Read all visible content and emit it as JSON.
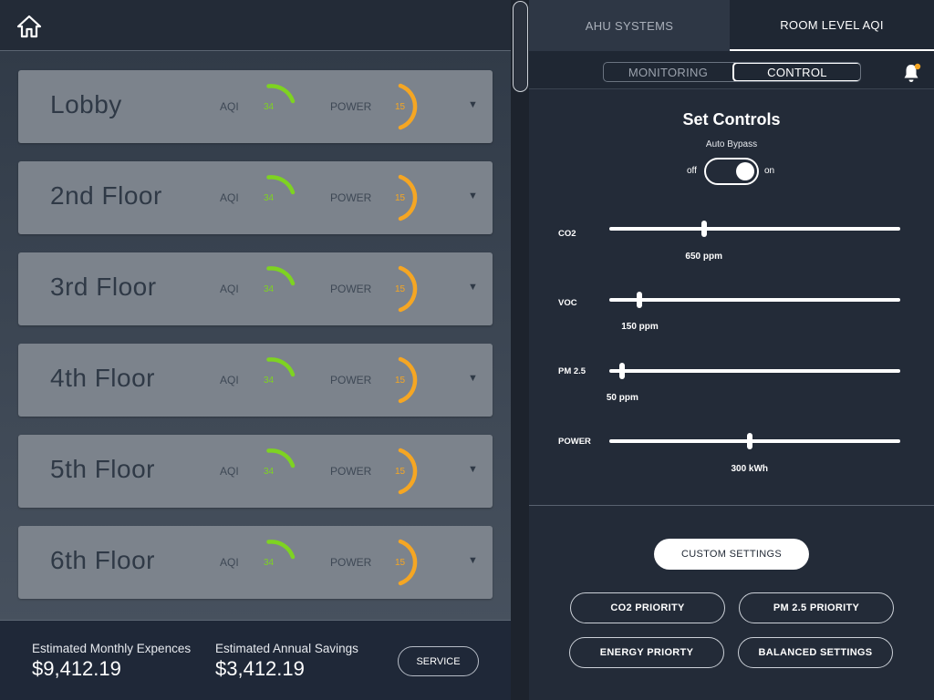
{
  "left_panel": {
    "floors": [
      {
        "name": "Lobby",
        "aqi_label": "AQI",
        "aqi_value": "34",
        "power_label": "POWER",
        "power_value": "15"
      },
      {
        "name": "2nd Floor",
        "aqi_label": "AQI",
        "aqi_value": "34",
        "power_label": "POWER",
        "power_value": "15"
      },
      {
        "name": "3rd Floor",
        "aqi_label": "AQI",
        "aqi_value": "34",
        "power_label": "POWER",
        "power_value": "15"
      },
      {
        "name": "4th Floor",
        "aqi_label": "AQI",
        "aqi_value": "34",
        "power_label": "POWER",
        "power_value": "15"
      },
      {
        "name": "5th Floor",
        "aqi_label": "AQI",
        "aqi_value": "34",
        "power_label": "POWER",
        "power_value": "15"
      },
      {
        "name": "6th Floor",
        "aqi_label": "AQI",
        "aqi_value": "34",
        "power_label": "POWER",
        "power_value": "15"
      }
    ],
    "expand_glyph": "▼",
    "footer": {
      "monthly_label": "Estimated Monthly Expences",
      "monthly_value": "$9,412.19",
      "annual_label": "Estimated Annual Savings",
      "annual_value": "$3,412.19",
      "service_label": "SERVICE"
    }
  },
  "right_panel": {
    "tabs": [
      {
        "label": "AHU SYSTEMS",
        "active": false
      },
      {
        "label": "ROOM LEVEL AQI",
        "active": true
      }
    ],
    "segmented": {
      "monitoring": "MONITORING",
      "control": "CONTROL",
      "active": "control"
    },
    "title": "Set Controls",
    "auto_bypass": {
      "label": "Auto Bypass",
      "off": "off",
      "on": "on",
      "state": "on"
    },
    "sliders": [
      {
        "label": "CO2",
        "value_text": "650 ppm",
        "fraction": 0.325
      },
      {
        "label": "VOC",
        "value_text": "150 ppm",
        "fraction": 0.105
      },
      {
        "label": "PM 2.5",
        "value_text": "50 ppm",
        "fraction": 0.045
      },
      {
        "label": "POWER",
        "value_text": "300 kWh",
        "fraction": 0.482
      }
    ],
    "custom_settings_label": "CUSTOM SETTINGS",
    "presets": [
      "CO2 PRIORITY",
      "PM 2.5 PRIORITY",
      "ENERGY PRIORTY",
      "BALANCED SETTINGS"
    ]
  },
  "colors": {
    "aqi_gauge": "#7ed321",
    "power_gauge": "#f5a623",
    "notification_dot": "#f5a623"
  },
  "icons": {
    "home": "home-icon",
    "bell": "bell-icon",
    "expand": "chevron-down-icon"
  }
}
